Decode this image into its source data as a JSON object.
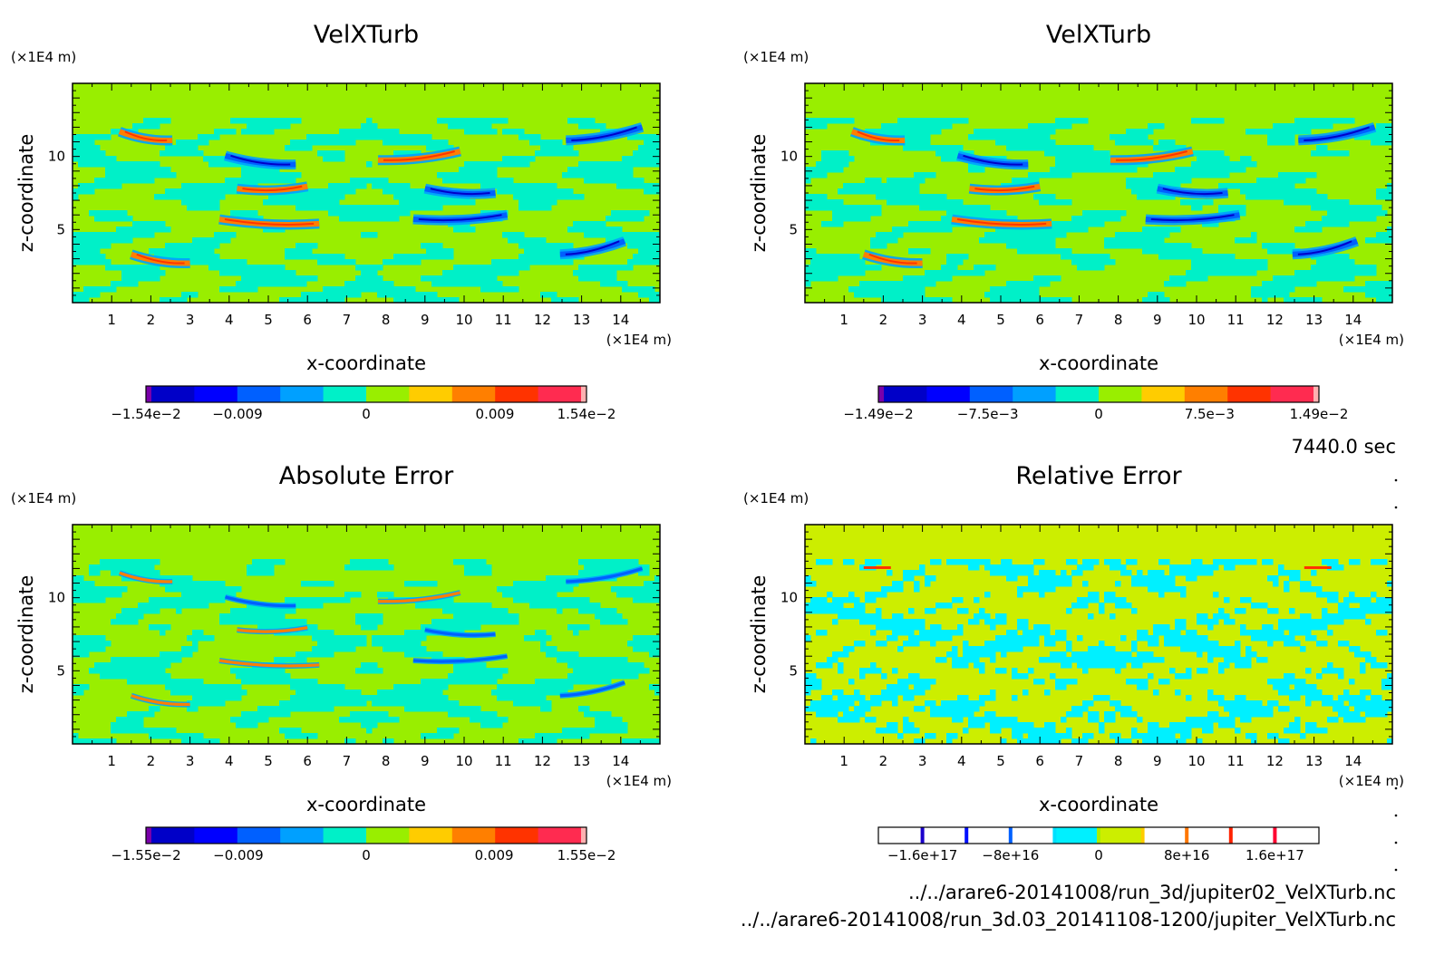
{
  "time_label": "7440.0 sec",
  "footer": {
    "file1": "../../arare6-20141008/run_3d/jupiter02_VelXTurb.nc",
    "file2": "../../arare6-20141008/run_3d.03_20141108-1200/jupiter_VelXTurb.nc"
  },
  "chart_data": [
    {
      "type": "heatmap",
      "title": "VelXTurb",
      "xlabel": "x-coordinate",
      "ylabel": "z-coordinate",
      "x_unit": "(×1E4 m)",
      "y_unit": "(×1E4 m)",
      "xlim": [
        0,
        15
      ],
      "ylim": [
        0,
        15
      ],
      "x_ticks": [
        "1",
        "2",
        "3",
        "4",
        "5",
        "6",
        "7",
        "8",
        "9",
        "10",
        "11",
        "12",
        "13",
        "14"
      ],
      "y_ticks": [
        "5",
        "10"
      ],
      "colorbar": {
        "min": -0.0154,
        "max": 0.0154,
        "tick_labels": [
          "−1.54e−2",
          "−0.009",
          "0",
          "0.009",
          "1.54e−2"
        ],
        "tick_values": [
          -0.0154,
          -0.009,
          0,
          0.009,
          0.0154
        ],
        "colors": [
          "#7a00aa",
          "#0000c8",
          "#0000ff",
          "#0060ff",
          "#00a0ff",
          "#00f0c8",
          "#99ee00",
          "#ffcc00",
          "#ff7f00",
          "#ff3300",
          "#ff2b50",
          "#ffb0b0"
        ]
      },
      "pattern": "turb"
    },
    {
      "type": "heatmap",
      "title": "VelXTurb",
      "xlabel": "x-coordinate",
      "ylabel": "z-coordinate",
      "x_unit": "(×1E4 m)",
      "y_unit": "(×1E4 m)",
      "xlim": [
        0,
        15
      ],
      "ylim": [
        0,
        15
      ],
      "x_ticks": [
        "1",
        "2",
        "3",
        "4",
        "5",
        "6",
        "7",
        "8",
        "9",
        "10",
        "11",
        "12",
        "13",
        "14"
      ],
      "y_ticks": [
        "5",
        "10"
      ],
      "colorbar": {
        "min": -0.0149,
        "max": 0.0149,
        "tick_labels": [
          "−1.49e−2",
          "−7.5e−3",
          "0",
          "7.5e−3",
          "1.49e−2"
        ],
        "tick_values": [
          -0.0149,
          -0.0075,
          0,
          0.0075,
          0.0149
        ],
        "colors": [
          "#7a00aa",
          "#0000c8",
          "#0000ff",
          "#0060ff",
          "#00a0ff",
          "#00f0c8",
          "#99ee00",
          "#ffcc00",
          "#ff7f00",
          "#ff3300",
          "#ff2b50",
          "#ffb0b0"
        ]
      },
      "pattern": "turb2"
    },
    {
      "type": "heatmap",
      "title": "Absolute Error",
      "xlabel": "x-coordinate",
      "ylabel": "z-coordinate",
      "x_unit": "(×1E4 m)",
      "y_unit": "(×1E4 m)",
      "xlim": [
        0,
        15
      ],
      "ylim": [
        0,
        15
      ],
      "x_ticks": [
        "1",
        "2",
        "3",
        "4",
        "5",
        "6",
        "7",
        "8",
        "9",
        "10",
        "11",
        "12",
        "13",
        "14"
      ],
      "y_ticks": [
        "5",
        "10"
      ],
      "colorbar": {
        "min": -0.0155,
        "max": 0.0155,
        "tick_labels": [
          "−1.55e−2",
          "−0.009",
          "0",
          "0.009",
          "1.55e−2"
        ],
        "tick_values": [
          -0.0155,
          -0.009,
          0,
          0.009,
          0.0155
        ],
        "colors": [
          "#7a00aa",
          "#0000c8",
          "#0000ff",
          "#0060ff",
          "#00a0ff",
          "#00f0c8",
          "#99ee00",
          "#ffcc00",
          "#ff7f00",
          "#ff3300",
          "#ff2b50",
          "#ffb0b0"
        ]
      },
      "pattern": "abs"
    },
    {
      "type": "heatmap",
      "title": "Relative Error",
      "xlabel": "x-coordinate",
      "ylabel": "z-coordinate",
      "x_unit": "(×1E4 m)",
      "y_unit": "(×1E4 m)",
      "xlim": [
        0,
        15
      ],
      "ylim": [
        0,
        15
      ],
      "x_ticks": [
        "1",
        "2",
        "3",
        "4",
        "5",
        "6",
        "7",
        "8",
        "9",
        "10",
        "11",
        "12",
        "13",
        "14"
      ],
      "y_ticks": [
        "5",
        "10"
      ],
      "colorbar": {
        "min": -2e+17,
        "max": 2e+17,
        "tick_labels": [
          "−1.6e+17",
          "−8e+16",
          "0",
          "8e+16",
          "1.6e+17"
        ],
        "tick_values": [
          -1.6e+17,
          -8e+16,
          0,
          8e+16,
          1.6e+17
        ],
        "colors": [
          "#ffffff",
          "#ffffff",
          "#ffffff",
          "#ffffff",
          "#00f0ff",
          "#ccee00",
          "#ffffff",
          "#ffffff",
          "#ffffff",
          "#ffffff"
        ],
        "boundary_colors": [
          "#1a00cc",
          "#0010ff",
          "#0060ff",
          "#00e0ff",
          "#aaee00",
          "#ffcc00",
          "#ff7700",
          "#ff2200",
          "#ff0030"
        ]
      },
      "pattern": "rel"
    }
  ]
}
